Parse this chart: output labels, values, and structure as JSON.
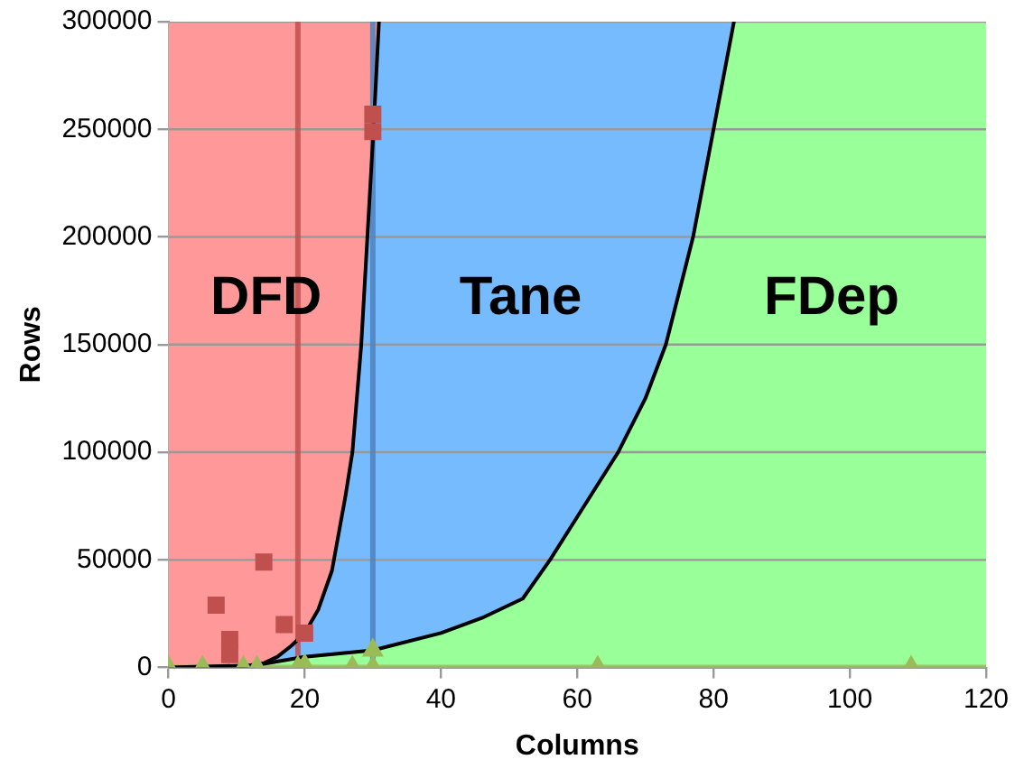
{
  "chart_data": {
    "type": "scatter",
    "xlabel": "Columns",
    "ylabel": "Rows",
    "xlim": [
      0,
      120
    ],
    "xticks": [
      0,
      20,
      40,
      60,
      80,
      100,
      120
    ],
    "ylim": [
      0,
      300000
    ],
    "yticks": [
      0,
      50000,
      100000,
      150000,
      200000,
      250000,
      300000
    ],
    "grid": "y",
    "legend": false,
    "series": [
      {
        "type": "area",
        "color": "#ff9999",
        "x": [
          0,
          10,
          14,
          16,
          18,
          20,
          22,
          24,
          26,
          27,
          28.3,
          29.2,
          30.1,
          30.9,
          0
        ],
        "values": [
          0,
          0,
          2000,
          5000,
          10000,
          16000,
          27000,
          45000,
          80000,
          100000,
          150000,
          200000,
          250000,
          300000,
          300000
        ]
      },
      {
        "type": "area",
        "color": "#77bbff",
        "x": [
          0,
          12.6,
          20,
          30,
          40,
          46,
          52,
          56,
          61,
          66,
          70,
          73,
          77,
          80,
          83,
          0
        ],
        "values": [
          0,
          1000,
          5000,
          8000,
          16000,
          23000,
          32000,
          50000,
          75000,
          100000,
          125000,
          150000,
          200000,
          250000,
          300000,
          300000
        ]
      },
      {
        "marker": "square",
        "color": "#c0504d",
        "x": [
          14,
          7,
          9,
          9,
          17,
          20,
          30,
          30
        ],
        "values": [
          49000,
          29000,
          13000,
          6000,
          20000,
          16000,
          257000,
          249000
        ]
      },
      {
        "marker": "triangle",
        "color": "#9bbb59",
        "x": [
          0,
          5,
          11,
          13,
          19,
          20,
          27,
          30,
          30,
          63,
          109
        ],
        "values": [
          0,
          0,
          0,
          0,
          0,
          1000,
          0,
          0,
          8000,
          0,
          0
        ]
      }
    ],
    "bands": [
      {
        "axis": "x",
        "from": 0,
        "to": 120,
        "color": "#99ff99"
      }
    ],
    "ref_lines": [
      {
        "axis": "x",
        "value": 19,
        "color": "#c0504d"
      },
      {
        "axis": "x",
        "value": 30,
        "color": "#4f81bd"
      },
      {
        "axis": "y",
        "value": 0,
        "color": "#9bbb59"
      }
    ],
    "annotations": [
      "DFD",
      "Tane",
      "FDep"
    ]
  }
}
